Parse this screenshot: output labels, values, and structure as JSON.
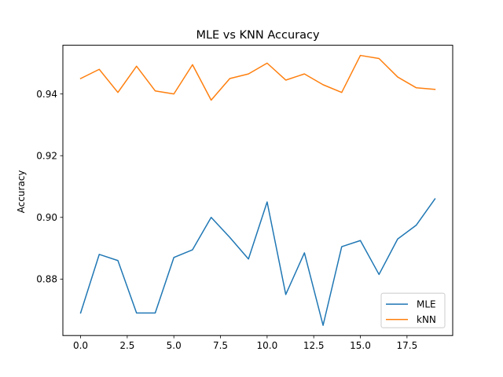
{
  "chart_data": {
    "type": "line",
    "title": "MLE vs KNN Accuracy",
    "xlabel": "",
    "ylabel": "Accuracy",
    "xlim": [
      -0.95,
      19.95
    ],
    "ylim": [
      0.8617,
      0.9558
    ],
    "x_ticks": [
      0,
      2.5,
      5,
      7.5,
      10,
      12.5,
      15,
      17.5
    ],
    "x_tick_labels": [
      "0.0",
      "2.5",
      "5.0",
      "7.5",
      "10.0",
      "12.5",
      "15.0",
      "17.5"
    ],
    "y_ticks": [
      0.88,
      0.9,
      0.92,
      0.94
    ],
    "y_tick_labels": [
      "0.88",
      "0.90",
      "0.92",
      "0.94"
    ],
    "grid": false,
    "legend_position": "lower-right",
    "x": [
      0,
      1,
      2,
      3,
      4,
      5,
      6,
      7,
      8,
      9,
      10,
      11,
      12,
      13,
      14,
      15,
      16,
      17,
      18,
      19
    ],
    "series": [
      {
        "name": "MLE",
        "color": "#1f77b4",
        "values": [
          0.869,
          0.888,
          0.886,
          0.869,
          0.869,
          0.887,
          0.8895,
          0.9,
          0.8935,
          0.8865,
          0.905,
          0.875,
          0.8885,
          0.865,
          0.8905,
          0.8925,
          0.8815,
          0.893,
          0.8975,
          0.906
        ]
      },
      {
        "name": "kNN",
        "color": "#ff7f0e",
        "values": [
          0.945,
          0.948,
          0.9405,
          0.949,
          0.941,
          0.94,
          0.9495,
          0.938,
          0.945,
          0.9465,
          0.95,
          0.9445,
          0.9465,
          0.943,
          0.9405,
          0.9525,
          0.9515,
          0.9455,
          0.942,
          0.9415
        ]
      }
    ]
  }
}
